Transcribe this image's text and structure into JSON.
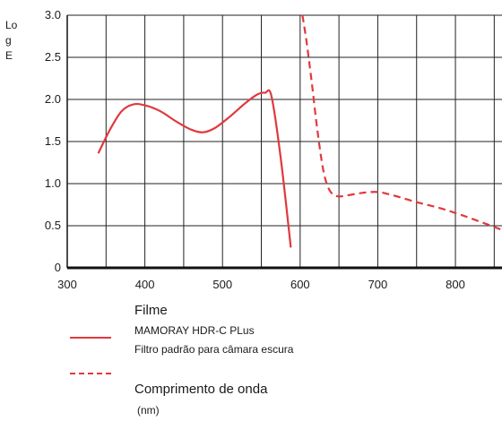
{
  "chart_data": {
    "type": "line",
    "ylabel": "Log E",
    "xlabel": "Comprimento de onda",
    "xunit": "(nm)",
    "xlim": [
      300,
      860
    ],
    "ylim": [
      0,
      3.0
    ],
    "x_ticks": [
      300,
      400,
      500,
      600,
      700,
      800
    ],
    "y_ticks": [
      0,
      0.5,
      1.0,
      1.5,
      2.0,
      2.5,
      3.0
    ],
    "y_tick_labels": [
      "0",
      "0.5",
      "1.0",
      "1.5",
      "2.0",
      "2.5",
      "3.0"
    ],
    "grid": true,
    "legend_title": "Filme",
    "series": [
      {
        "name": "MAMORAY HDR-C PLus",
        "style": "solid",
        "color": "#e0393e",
        "points": [
          [
            340,
            1.36
          ],
          [
            355,
            1.64
          ],
          [
            370,
            1.86
          ],
          [
            385,
            1.94
          ],
          [
            400,
            1.93
          ],
          [
            420,
            1.86
          ],
          [
            440,
            1.74
          ],
          [
            460,
            1.64
          ],
          [
            475,
            1.61
          ],
          [
            490,
            1.66
          ],
          [
            510,
            1.8
          ],
          [
            530,
            1.96
          ],
          [
            545,
            2.06
          ],
          [
            555,
            2.08
          ],
          [
            563,
            2.04
          ],
          [
            575,
            1.3
          ],
          [
            588,
            0.24
          ]
        ]
      },
      {
        "name": "Filtro padrão para câmara escura",
        "style": "dashed",
        "color": "#e0393e",
        "points": [
          [
            603,
            3.0
          ],
          [
            608,
            2.7
          ],
          [
            615,
            2.2
          ],
          [
            622,
            1.65
          ],
          [
            630,
            1.15
          ],
          [
            638,
            0.92
          ],
          [
            648,
            0.85
          ],
          [
            660,
            0.86
          ],
          [
            680,
            0.89
          ],
          [
            700,
            0.9
          ],
          [
            720,
            0.86
          ],
          [
            750,
            0.78
          ],
          [
            780,
            0.71
          ],
          [
            810,
            0.62
          ],
          [
            840,
            0.52
          ],
          [
            860,
            0.45
          ]
        ]
      }
    ]
  }
}
